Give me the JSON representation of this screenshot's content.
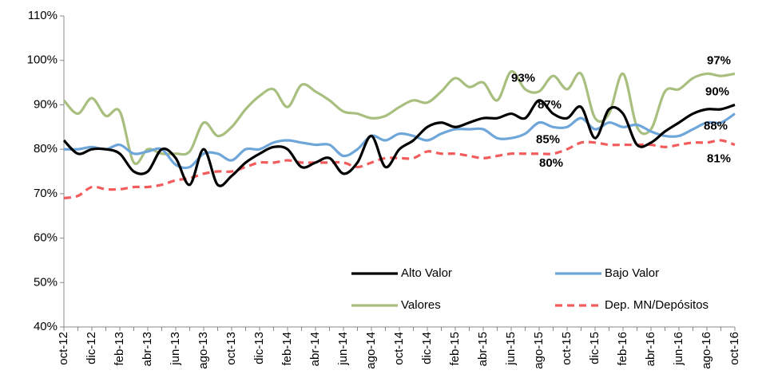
{
  "chart_data": {
    "type": "line",
    "smooth": true,
    "grid": false,
    "legend": "lower right",
    "categories": [
      "oct-12",
      null,
      "dic-12",
      null,
      "feb-13",
      null,
      "abr-13",
      null,
      "jun-13",
      null,
      "ago-13",
      null,
      "oct-13",
      null,
      "dic-13",
      null,
      "feb-14",
      null,
      "abr-14",
      null,
      "jun-14",
      null,
      "ago-14",
      null,
      "oct-14",
      null,
      "dic-14",
      null,
      "feb-15",
      null,
      "abr-15",
      null,
      "jun-15",
      null,
      "ago-15",
      null,
      "oct-15",
      null,
      "dic-15",
      null,
      "feb-16",
      null,
      "abr-16",
      null,
      "jun-16",
      null,
      "ago-16",
      null,
      "oct-16"
    ],
    "ylim": [
      40,
      110
    ],
    "yticks": [
      {
        "value": 40,
        "label": "40%"
      },
      {
        "value": 50,
        "label": "50%"
      },
      {
        "value": 60,
        "label": "60%"
      },
      {
        "value": 70,
        "label": "70%"
      },
      {
        "value": 80,
        "label": "80%"
      },
      {
        "value": 90,
        "label": "90%"
      },
      {
        "value": 100,
        "label": "100%"
      },
      {
        "value": 110,
        "label": "110%"
      }
    ],
    "series": [
      {
        "name": "Alto Valor",
        "color": "#000000",
        "label_color": "#000000",
        "dash": false,
        "values": [
          82,
          79,
          80,
          80,
          79,
          75,
          75,
          80,
          78,
          72,
          80,
          72,
          74,
          77,
          79,
          80.5,
          80,
          76,
          77,
          78,
          74.5,
          77,
          83,
          76,
          80,
          82,
          85,
          86,
          85,
          86,
          87,
          87,
          88,
          87,
          91,
          88,
          87,
          89.5,
          82.5,
          89,
          88,
          81,
          81.5,
          84,
          86,
          88,
          89,
          89,
          90
        ],
        "value_labels": [
          null,
          null,
          null,
          null,
          null,
          null,
          null,
          null,
          null,
          null,
          null,
          null,
          null,
          null,
          null,
          null,
          null,
          null,
          null,
          null,
          null,
          null,
          null,
          null,
          null,
          null,
          null,
          null,
          null,
          null,
          null,
          null,
          null,
          null,
          null,
          null,
          "87%",
          null,
          null,
          null,
          null,
          null,
          null,
          null,
          null,
          null,
          null,
          null,
          "90%"
        ]
      },
      {
        "name": "Bajo Valor",
        "color": "#6fa6da",
        "label_color": "#4f7fae",
        "dash": false,
        "values": [
          80,
          80,
          80.5,
          80,
          81,
          79,
          79.5,
          80,
          76.5,
          76,
          79,
          79,
          77.5,
          80,
          80,
          81.5,
          82,
          81.5,
          81,
          81,
          78.5,
          80,
          83,
          82,
          83.5,
          83,
          82,
          83.5,
          84.5,
          84.5,
          84.5,
          82.5,
          82.5,
          83.5,
          86,
          85,
          85,
          87,
          84.5,
          86,
          85,
          85.5,
          84,
          83,
          83,
          84.5,
          86,
          86,
          88
        ],
        "value_labels": [
          null,
          null,
          null,
          null,
          null,
          null,
          null,
          null,
          null,
          null,
          null,
          null,
          null,
          null,
          null,
          null,
          null,
          null,
          null,
          null,
          null,
          null,
          null,
          null,
          null,
          null,
          null,
          null,
          null,
          null,
          null,
          null,
          null,
          null,
          null,
          null,
          "85%",
          null,
          null,
          null,
          null,
          null,
          null,
          null,
          null,
          null,
          null,
          null,
          "88%"
        ]
      },
      {
        "name": "Valores",
        "color": "#a9bf7f",
        "label_color": "#86a447",
        "dash": false,
        "values": [
          91,
          88,
          91.5,
          87.5,
          88.5,
          77,
          80,
          79,
          79,
          79.5,
          86,
          83,
          85,
          89,
          92,
          93.5,
          89.5,
          94.5,
          93,
          91,
          88.5,
          88,
          87,
          87.5,
          89.5,
          91,
          90.5,
          93,
          96,
          94,
          95,
          91,
          97.5,
          93.5,
          93,
          96.5,
          93.5,
          97,
          87,
          88,
          97,
          85,
          84.5,
          93,
          93.5,
          96,
          97,
          96.5,
          97
        ],
        "value_labels": [
          null,
          null,
          null,
          null,
          null,
          null,
          null,
          null,
          null,
          null,
          null,
          null,
          null,
          null,
          null,
          null,
          null,
          null,
          null,
          null,
          null,
          null,
          null,
          null,
          null,
          null,
          null,
          null,
          null,
          null,
          null,
          null,
          null,
          null,
          "93%",
          null,
          null,
          null,
          null,
          null,
          null,
          null,
          null,
          null,
          null,
          null,
          null,
          null,
          "97%"
        ]
      },
      {
        "name": "Dep. MN/Depósitos",
        "color": "#f25c5c",
        "label_color": "#ff0000",
        "dash": true,
        "values": [
          69,
          69.5,
          71.5,
          71,
          71,
          71.5,
          71.5,
          72,
          73,
          73.5,
          74.5,
          75,
          75,
          76,
          77,
          77,
          77.5,
          77,
          77,
          77,
          77,
          76,
          77,
          78,
          78,
          78,
          79.5,
          79,
          79,
          78.5,
          78,
          78.5,
          79,
          79,
          79,
          79,
          80,
          81.5,
          81.5,
          81,
          81,
          81,
          81,
          80.5,
          81,
          81.5,
          81.5,
          82,
          81
        ],
        "value_labels": [
          null,
          null,
          null,
          null,
          null,
          null,
          null,
          null,
          null,
          null,
          null,
          null,
          null,
          null,
          null,
          null,
          null,
          null,
          null,
          null,
          null,
          null,
          null,
          null,
          null,
          null,
          null,
          null,
          null,
          null,
          null,
          null,
          null,
          null,
          null,
          null,
          "80%",
          null,
          null,
          null,
          null,
          null,
          null,
          null,
          null,
          null,
          null,
          null,
          "81%"
        ]
      }
    ]
  }
}
